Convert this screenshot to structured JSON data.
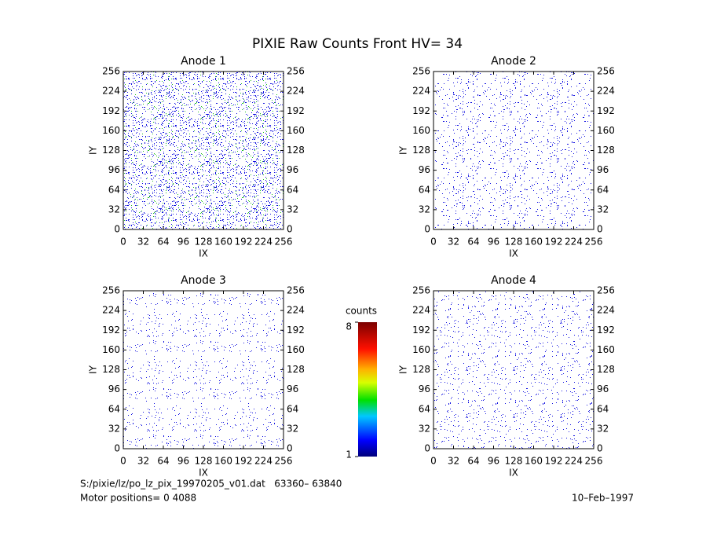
{
  "title": "PIXIE Raw Counts Front HV= 34",
  "chart_data": [
    {
      "type": "heatmap",
      "title": "Anode 1",
      "x_label": "IX",
      "y_label": "IY",
      "xlim": [
        0,
        256
      ],
      "ylim": [
        0,
        256
      ],
      "xticks": [
        0,
        32,
        64,
        96,
        128,
        160,
        192,
        224,
        256
      ],
      "yticks": [
        0,
        32,
        64,
        96,
        128,
        160,
        192,
        224,
        256
      ]
    },
    {
      "type": "heatmap",
      "title": "Anode 2",
      "x_label": "IX",
      "y_label": "IY",
      "xlim": [
        0,
        256
      ],
      "ylim": [
        0,
        256
      ],
      "xticks": [
        0,
        32,
        64,
        96,
        128,
        160,
        192,
        224,
        256
      ],
      "yticks": [
        0,
        32,
        64,
        96,
        128,
        160,
        192,
        224,
        256
      ]
    },
    {
      "type": "heatmap",
      "title": "Anode 3",
      "x_label": "IX",
      "y_label": "IY",
      "xlim": [
        0,
        256
      ],
      "ylim": [
        0,
        256
      ],
      "xticks": [
        0,
        32,
        64,
        96,
        128,
        160,
        192,
        224,
        256
      ],
      "yticks": [
        0,
        32,
        64,
        96,
        128,
        160,
        192,
        224,
        256
      ]
    },
    {
      "type": "heatmap",
      "title": "Anode 4",
      "x_label": "IX",
      "y_label": "IY",
      "xlim": [
        0,
        256
      ],
      "ylim": [
        0,
        256
      ],
      "xticks": [
        0,
        32,
        64,
        96,
        128,
        160,
        192,
        224,
        256
      ],
      "yticks": [
        0,
        32,
        64,
        96,
        128,
        160,
        192,
        224,
        256
      ]
    }
  ],
  "colorbar": {
    "label": "counts",
    "lim": [
      1,
      8
    ],
    "ticks": [
      1,
      8
    ]
  },
  "footer": {
    "file": "S:/pixie/lz/po_lz_pix_19970205_v01.dat   63360– 63840",
    "motor": "Motor positions= 0 4088",
    "date": "10–Feb–1997"
  }
}
